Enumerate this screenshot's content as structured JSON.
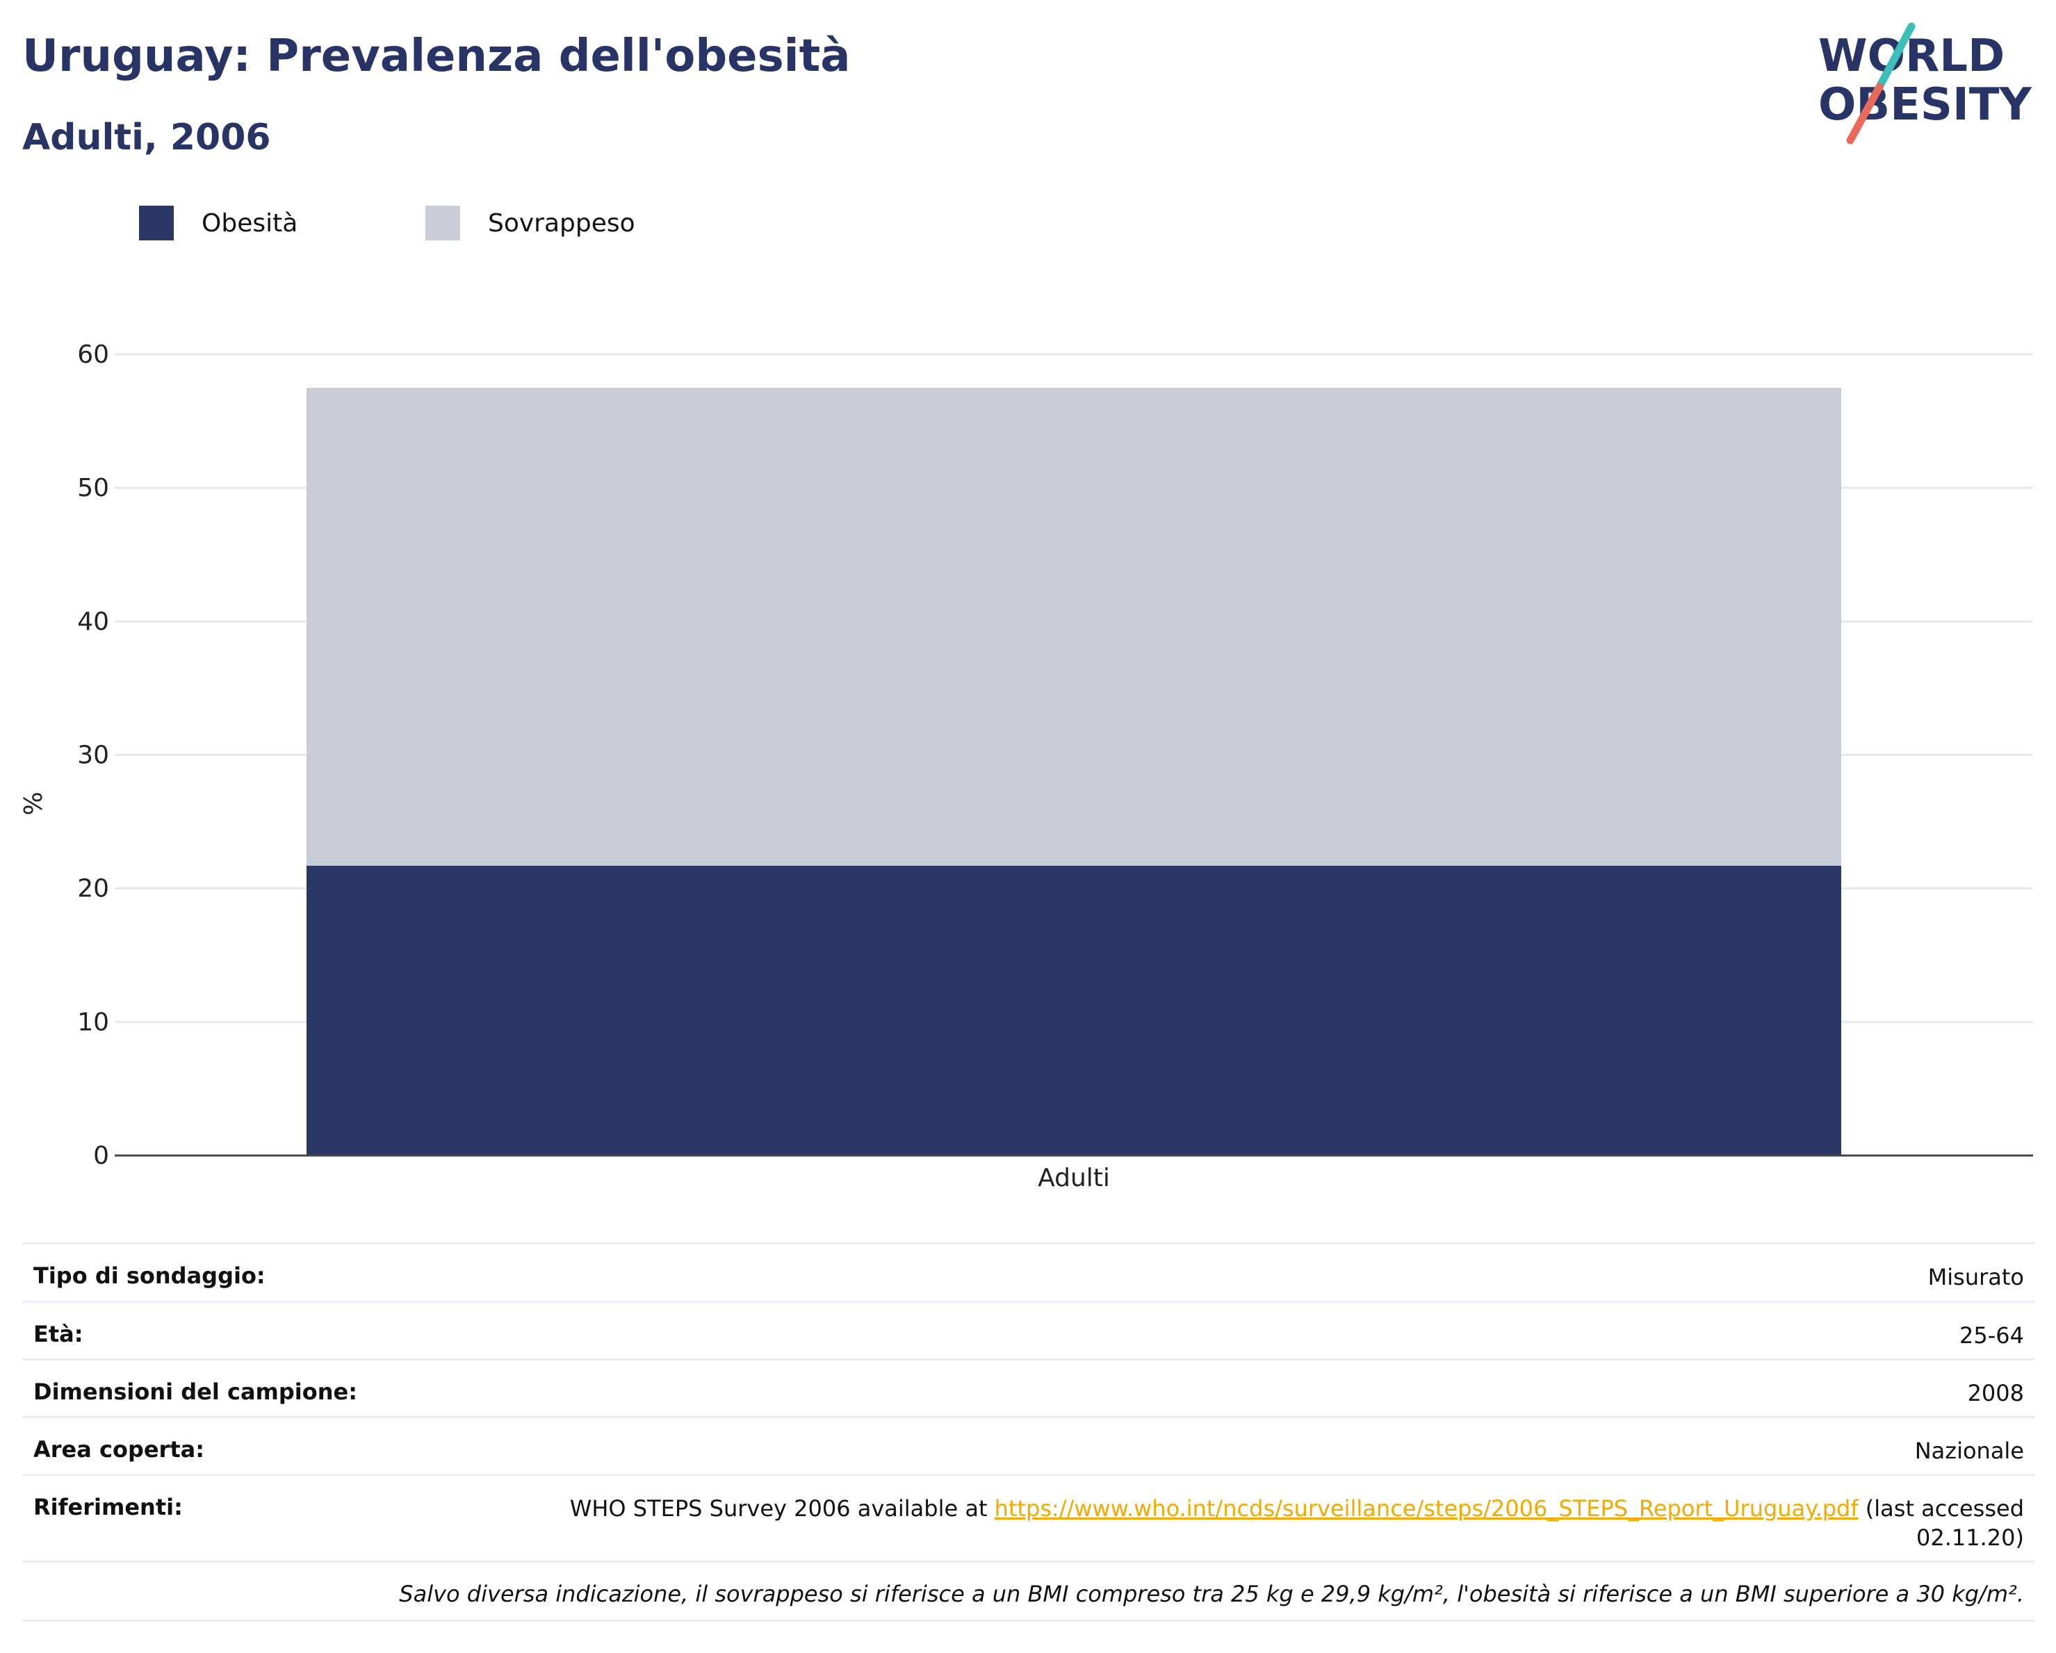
{
  "header": {
    "title": "Uruguay: Prevalenza dell'obesità",
    "subtitle": "Adulti, 2006"
  },
  "logo": {
    "line1": "WORLD",
    "line2": "OBESITY",
    "colors": {
      "text": "#283466",
      "slash_top": "#3bbfb8",
      "slash_bottom": "#e86a5a"
    }
  },
  "legend": {
    "items": [
      {
        "label": "Obesità",
        "color": "#2b3764"
      },
      {
        "label": "Sovrappeso",
        "color": "#cacdd8"
      }
    ]
  },
  "chart_data": {
    "type": "bar",
    "stacked": true,
    "categories": [
      "Adulti"
    ],
    "series": [
      {
        "name": "Obesità",
        "values": [
          21.7
        ],
        "color": "#2b3764"
      },
      {
        "name": "Sovrappeso",
        "values": [
          35.8
        ],
        "color": "#cacdd8"
      }
    ],
    "ylabel": "%",
    "ylim": [
      0,
      60
    ],
    "yticks": [
      0,
      10,
      20,
      30,
      40,
      50,
      60
    ],
    "grid": true,
    "legend_position": "top-left"
  },
  "info": {
    "rows": [
      {
        "label": "Tipo di sondaggio:",
        "value": "Misurato"
      },
      {
        "label": "Età:",
        "value": "25-64"
      },
      {
        "label": "Dimensioni del campione:",
        "value": "2008"
      },
      {
        "label": "Area coperta:",
        "value": "Nazionale"
      }
    ],
    "reference": {
      "label": "Riferimenti:",
      "prefix": "WHO STEPS Survey 2006 available at ",
      "link": "https://www.who.int/ncds/surveillance/steps/2006_STEPS_Report_Uruguay.pdf",
      "suffix": " (last accessed 02.11.20)"
    },
    "note": "Salvo diversa indicazione, il sovrappeso si riferisce a un BMI compreso tra 25 kg e 29,9 kg/m², l'obesità si riferisce a un BMI superiore a 30 kg/m²."
  }
}
